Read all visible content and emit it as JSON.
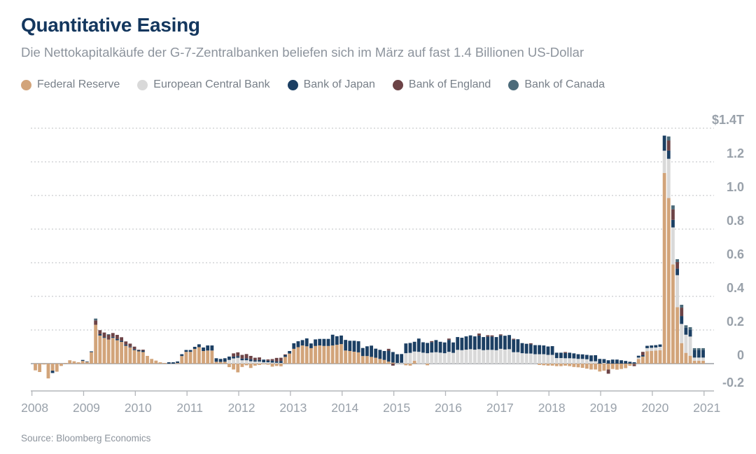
{
  "header": {
    "title": "Quantitative Easing",
    "subtitle": "Die Nettokapitalkäufe der G-7-Zentralbanken beliefen sich im März auf fast 1.4 Billionen US-Dollar"
  },
  "source": "Source: Bloomberg Economics",
  "legend": [
    {
      "label": "Federal Reserve",
      "color": "#d2a47a"
    },
    {
      "label": "European Central Bank",
      "color": "#d9d9d9"
    },
    {
      "label": "Bank of Japan",
      "color": "#1c3f63"
    },
    {
      "label": "Bank of England",
      "color": "#6c4346"
    },
    {
      "label": "Bank of Canada",
      "color": "#4c6b7a"
    }
  ],
  "chart_data": {
    "type": "bar",
    "stacked": true,
    "unit": "trillions of US dollars per month",
    "title": "Quantitative Easing",
    "xlabel": "",
    "ylabel": "$1.4T",
    "ylim": [
      -0.2,
      1.4
    ],
    "grid": "dotted horizontal",
    "legend_position": "top",
    "start_month": "2008-01",
    "end_month": "2020-12",
    "x_tick_labels": [
      "2008",
      "2009",
      "2010",
      "2011",
      "2012",
      "2013",
      "2014",
      "2015",
      "2016",
      "2017",
      "2018",
      "2019",
      "2020",
      "2021"
    ],
    "y_ticks": [
      {
        "label": "$1.4T",
        "value": 1.4
      },
      {
        "label": "1.2",
        "value": 1.2
      },
      {
        "label": "1.0",
        "value": 1.0
      },
      {
        "label": "0.8",
        "value": 0.8
      },
      {
        "label": "0.6",
        "value": 0.6
      },
      {
        "label": "0.4",
        "value": 0.4
      },
      {
        "label": "0.2",
        "value": 0.2
      },
      {
        "label": "0",
        "value": 0
      },
      {
        "label": "-0.2",
        "value": -0.2
      }
    ],
    "series_order": [
      "Federal Reserve",
      "European Central Bank",
      "Bank of Japan",
      "Bank of England",
      "Bank of Canada"
    ],
    "series_colors": [
      "#d2a47a",
      "#d9d9d9",
      "#1c3f63",
      "#6c4346",
      "#4c6b7a"
    ],
    "values_format": "[fed, ecb, boj, boe, boc] per month from 2008-01",
    "values": [
      [
        -0.04,
        0,
        0,
        0,
        0
      ],
      [
        -0.05,
        0,
        0,
        0,
        0
      ],
      [
        -0.005,
        0,
        0,
        0,
        0
      ],
      [
        -0.088,
        0,
        0,
        0,
        0
      ],
      [
        -0.042,
        0,
        -0.014,
        0,
        0
      ],
      [
        -0.048,
        0,
        0,
        0,
        0
      ],
      [
        -0.014,
        0,
        0,
        0,
        0
      ],
      [
        0.004,
        0,
        0,
        0,
        0
      ],
      [
        0.02,
        0,
        0,
        0,
        0
      ],
      [
        0.014,
        0,
        0,
        0,
        0
      ],
      [
        0.008,
        0,
        0,
        0,
        0
      ],
      [
        0.016,
        0,
        0.006,
        0,
        0
      ],
      [
        0.01,
        0,
        0.003,
        0,
        0
      ],
      [
        0.068,
        0,
        0.005,
        0,
        0
      ],
      [
        0.231,
        0,
        0,
        0.026,
        0.011
      ],
      [
        0.167,
        0,
        0.008,
        0.024,
        0
      ],
      [
        0.153,
        0,
        0.005,
        0.027,
        0
      ],
      [
        0.143,
        0,
        0,
        0.028,
        0.004
      ],
      [
        0.153,
        0,
        0.006,
        0.023,
        0
      ],
      [
        0.139,
        0,
        0.007,
        0.025,
        0
      ],
      [
        0.129,
        0,
        0.007,
        0.021,
        0
      ],
      [
        0.106,
        0,
        0.007,
        0.019,
        0
      ],
      [
        0.097,
        0,
        0.004,
        0.018,
        0
      ],
      [
        0.08,
        0,
        0.006,
        0.015,
        0
      ],
      [
        0.073,
        0,
        0.007,
        0.003,
        0
      ],
      [
        0.069,
        0,
        0.008,
        0.006,
        0
      ],
      [
        0.046,
        0,
        0,
        0,
        0
      ],
      [
        0.028,
        0,
        0,
        0,
        0
      ],
      [
        0.018,
        0,
        0,
        0,
        0
      ],
      [
        0.008,
        0,
        0,
        0,
        0
      ],
      [
        0.004,
        0,
        0,
        0,
        0
      ],
      [
        0,
        0,
        0.008,
        0,
        0
      ],
      [
        0,
        0,
        0.008,
        0,
        0
      ],
      [
        0.004,
        0,
        0.009,
        0,
        0
      ],
      [
        0.045,
        0,
        0.011,
        0,
        0
      ],
      [
        0.07,
        0,
        0.011,
        0,
        0
      ],
      [
        0.07,
        0,
        0.011,
        0,
        0
      ],
      [
        0.087,
        0,
        0.013,
        0,
        0
      ],
      [
        0.098,
        0,
        0.017,
        0,
        0
      ],
      [
        0.075,
        0,
        0.021,
        0,
        0
      ],
      [
        0.078,
        0,
        0.03,
        0,
        0
      ],
      [
        0.078,
        0,
        0.03,
        0,
        0
      ],
      [
        0.011,
        0,
        0.021,
        0,
        0
      ],
      [
        0.01,
        0,
        0.018,
        0,
        0
      ],
      [
        0.011,
        0,
        0.021,
        0,
        0
      ],
      [
        -0.021,
        0.022,
        0.02,
        0,
        0
      ],
      [
        -0.035,
        0.031,
        0.011,
        0.019,
        0
      ],
      [
        -0.052,
        0.035,
        0.01,
        0.022,
        0
      ],
      [
        -0.02,
        0.02,
        0.01,
        0.022,
        0
      ],
      [
        -0.01,
        0.02,
        0.012,
        0.025,
        0
      ],
      [
        -0.026,
        0.014,
        0.012,
        0.02,
        0
      ],
      [
        -0.012,
        0.012,
        0.008,
        0.015,
        0
      ],
      [
        -0.008,
        0.012,
        0.01,
        0.015,
        0
      ],
      [
        -0.004,
        0.008,
        0.016,
        0,
        0
      ],
      [
        -0.006,
        0.008,
        0.01,
        0.007,
        0
      ],
      [
        -0.018,
        0.006,
        0.012,
        0.009,
        0
      ],
      [
        -0.014,
        0.005,
        0.008,
        0.021,
        0
      ],
      [
        -0.016,
        0.004,
        0.012,
        0.019,
        0
      ],
      [
        0.04,
        0,
        0.01,
        0.005,
        0
      ],
      [
        0.06,
        0,
        0.015,
        0,
        0
      ],
      [
        0.088,
        0,
        0.033,
        0,
        0
      ],
      [
        0.098,
        0,
        0.035,
        0,
        0
      ],
      [
        0.108,
        0,
        0.032,
        0,
        0
      ],
      [
        0.103,
        0,
        0.047,
        0,
        0
      ],
      [
        0.092,
        0,
        0.028,
        0,
        0
      ],
      [
        0.105,
        0,
        0.039,
        0,
        0
      ],
      [
        0.108,
        0,
        0.039,
        0,
        0
      ],
      [
        0.105,
        0,
        0.042,
        0,
        0
      ],
      [
        0.105,
        0,
        0.042,
        0,
        0
      ],
      [
        0.108,
        0,
        0.064,
        0,
        0
      ],
      [
        0.112,
        0,
        0.051,
        0,
        0
      ],
      [
        0.116,
        0,
        0.051,
        0,
        0
      ],
      [
        0.078,
        0,
        0.063,
        0,
        0
      ],
      [
        0.075,
        0,
        0.061,
        0,
        0
      ],
      [
        0.071,
        0,
        0.065,
        0,
        0
      ],
      [
        0.067,
        0,
        0.066,
        0,
        0
      ],
      [
        0.045,
        0,
        0.048,
        0,
        0
      ],
      [
        0.045,
        0,
        0.058,
        0,
        0
      ],
      [
        0.04,
        0,
        0.067,
        0,
        0
      ],
      [
        0.035,
        0,
        0.054,
        0,
        0
      ],
      [
        0.028,
        0,
        0.054,
        0,
        0
      ],
      [
        0.022,
        0,
        0.053,
        0,
        0
      ],
      [
        0.012,
        0,
        0.065,
        0.011,
        0
      ],
      [
        0.006,
        0,
        0.063,
        -0.012,
        0
      ],
      [
        0,
        0.004,
        0.052,
        0,
        0
      ],
      [
        0,
        0.005,
        0.052,
        0,
        0
      ],
      [
        -0.01,
        0.062,
        0.058,
        0,
        0
      ],
      [
        -0.012,
        0.064,
        0.059,
        0,
        0
      ],
      [
        0.017,
        0.055,
        0.058,
        0,
        0
      ],
      [
        0,
        0.07,
        0.079,
        0,
        0
      ],
      [
        0,
        0.065,
        0.062,
        0,
        0
      ],
      [
        -0.01,
        0.062,
        0.061,
        0,
        0
      ],
      [
        0,
        0.066,
        0.062,
        0.006,
        0
      ],
      [
        0,
        0.068,
        0.072,
        0,
        0
      ],
      [
        0,
        0.065,
        0.065,
        0,
        0
      ],
      [
        0,
        0.062,
        0.064,
        0,
        0
      ],
      [
        0,
        0.07,
        0.071,
        0.008,
        0
      ],
      [
        0,
        0.064,
        0.062,
        0,
        0
      ],
      [
        0,
        0.082,
        0.076,
        0,
        0
      ],
      [
        0,
        0.08,
        0.074,
        0,
        0
      ],
      [
        0,
        0.083,
        0.079,
        0,
        0
      ],
      [
        0,
        0.086,
        0.082,
        0,
        0
      ],
      [
        0,
        0.083,
        0.079,
        0,
        0
      ],
      [
        0,
        0.086,
        0.081,
        0.012,
        0
      ],
      [
        0,
        0.08,
        0.078,
        0,
        0
      ],
      [
        0,
        0.082,
        0.079,
        0.008,
        0
      ],
      [
        0,
        0.082,
        0.079,
        0.007,
        0
      ],
      [
        0,
        0.08,
        0.078,
        0,
        0
      ],
      [
        0,
        0.088,
        0.08,
        0.006,
        0
      ],
      [
        0,
        0.084,
        0.082,
        0,
        0
      ],
      [
        0,
        0.086,
        0.084,
        0,
        0
      ],
      [
        0,
        0.068,
        0.075,
        0.005,
        0
      ],
      [
        0,
        0.068,
        0.077,
        0,
        0
      ],
      [
        0,
        0.062,
        0.06,
        0,
        0
      ],
      [
        0,
        0.06,
        0.058,
        0,
        0
      ],
      [
        0,
        0.06,
        0.055,
        0.006,
        0
      ],
      [
        0,
        0.056,
        0.054,
        0,
        0
      ],
      [
        -0.008,
        0.056,
        0.054,
        0,
        0
      ],
      [
        -0.01,
        0.056,
        0.052,
        0,
        0
      ],
      [
        -0.012,
        0.052,
        0.05,
        0,
        0
      ],
      [
        -0.012,
        0.052,
        0.052,
        0,
        0
      ],
      [
        -0.015,
        0.033,
        0.032,
        0,
        0
      ],
      [
        -0.015,
        0.033,
        0.032,
        0,
        0
      ],
      [
        -0.012,
        0.032,
        0.031,
        0.006,
        0
      ],
      [
        -0.015,
        0.032,
        0.033,
        0,
        0
      ],
      [
        -0.02,
        0.031,
        0.03,
        0,
        0
      ],
      [
        -0.022,
        0.028,
        0.028,
        0,
        0
      ],
      [
        -0.025,
        0.028,
        0.027,
        0,
        0
      ],
      [
        -0.03,
        0.026,
        0.026,
        0,
        0
      ],
      [
        -0.035,
        0.014,
        0.035,
        0,
        0
      ],
      [
        -0.035,
        0.014,
        0.036,
        0,
        0
      ],
      [
        -0.047,
        0,
        0.028,
        0,
        0
      ],
      [
        -0.042,
        0.004,
        0.023,
        0,
        0
      ],
      [
        -0.035,
        0,
        0.02,
        -0.025,
        0
      ],
      [
        -0.032,
        0,
        0.024,
        0,
        0
      ],
      [
        -0.036,
        0,
        0.024,
        0,
        0
      ],
      [
        -0.032,
        0,
        0.02,
        0,
        0
      ],
      [
        -0.027,
        0,
        0.016,
        0,
        0
      ],
      [
        -0.013,
        0,
        0.011,
        0,
        0
      ],
      [
        -0.003,
        0,
        0.008,
        -0.012,
        0
      ],
      [
        0.028,
        0.008,
        0.011,
        0,
        0
      ],
      [
        0.042,
        0,
        0.008,
        0.02,
        0
      ],
      [
        0.074,
        0.018,
        0.014,
        0,
        0
      ],
      [
        0.076,
        0.018,
        0.014,
        0,
        0
      ],
      [
        0.078,
        0.018,
        0.014,
        0,
        0
      ],
      [
        0.08,
        0.02,
        0.014,
        0,
        0
      ],
      [
        1.134,
        0.132,
        0.09,
        0,
        0
      ],
      [
        0.985,
        0.233,
        0.049,
        0.06,
        0.024
      ],
      [
        0.59,
        0.22,
        0.045,
        0.063,
        0.023
      ],
      [
        0.336,
        0.19,
        0.039,
        0.039,
        0.017
      ],
      [
        0.122,
        0.114,
        0.047,
        0.05,
        0.017
      ],
      [
        0.064,
        0.108,
        0.042,
        0,
        0.014
      ],
      [
        0.047,
        0.114,
        0.042,
        0,
        0.014
      ],
      [
        0.017,
        0.019,
        0.045,
        0,
        0.011
      ],
      [
        0.017,
        0.019,
        0.045,
        0,
        0.011
      ],
      [
        0.017,
        0.019,
        0.045,
        0,
        0.011
      ]
    ]
  }
}
